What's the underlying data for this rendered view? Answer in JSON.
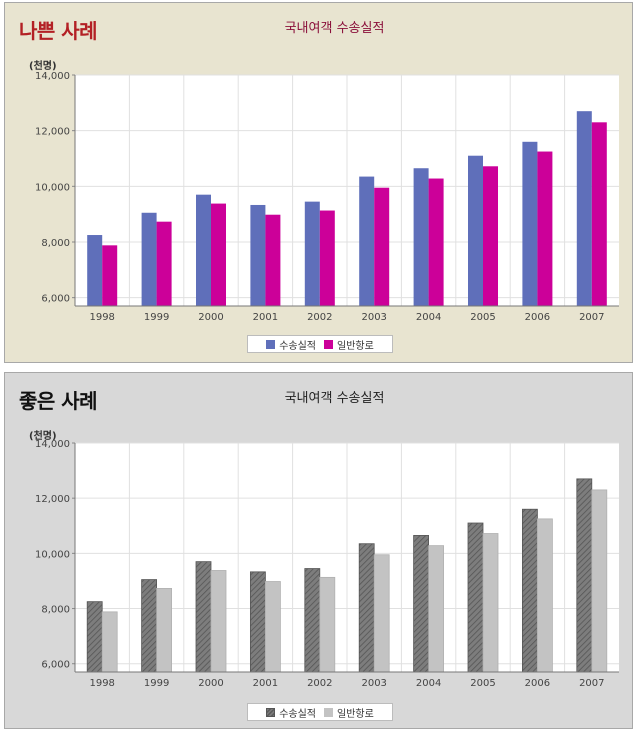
{
  "panels": [
    {
      "heading": "나쁜 사례",
      "colors": {
        "series1": "#5f6fba",
        "series2": "#cc0099",
        "background": "#e8e4d0"
      }
    },
    {
      "heading": "좋은 사례",
      "colors": {
        "series1": "hatched-gray #7a7a7a",
        "series2": "#c3c3c3",
        "background": "#d8d8d8"
      }
    }
  ],
  "chart_data": [
    {
      "type": "bar",
      "title": "국내여객 수송실적",
      "ylabel": "(천명)",
      "xlabel": "",
      "categories": [
        "1998",
        "1999",
        "2000",
        "2001",
        "2002",
        "2003",
        "2004",
        "2005",
        "2006",
        "2007"
      ],
      "series": [
        {
          "name": "수송실적",
          "values": [
            8250,
            9050,
            9700,
            9330,
            9450,
            10350,
            10650,
            11100,
            11600,
            12700
          ]
        },
        {
          "name": "일반항로",
          "values": [
            7880,
            8730,
            9380,
            8980,
            9130,
            9950,
            10280,
            10720,
            11250,
            12300
          ]
        }
      ],
      "yticks": [
        "6,000",
        "8,000",
        "10,000",
        "12,000",
        "14,000"
      ],
      "ylim": [
        5700,
        14000
      ],
      "grid": true,
      "legend": "bottom-center"
    },
    {
      "type": "bar",
      "title": "국내여객 수송실적",
      "ylabel": "(천명)",
      "xlabel": "",
      "categories": [
        "1998",
        "1999",
        "2000",
        "2001",
        "2002",
        "2003",
        "2004",
        "2005",
        "2006",
        "2007"
      ],
      "series": [
        {
          "name": "수송실적",
          "values": [
            8250,
            9050,
            9700,
            9330,
            9450,
            10350,
            10650,
            11100,
            11600,
            12700
          ]
        },
        {
          "name": "일반항로",
          "values": [
            7880,
            8730,
            9380,
            8980,
            9130,
            9950,
            10280,
            10720,
            11250,
            12300
          ]
        }
      ],
      "yticks": [
        "6,000",
        "8,000",
        "10,000",
        "12,000",
        "14,000"
      ],
      "ylim": [
        5700,
        14000
      ],
      "grid": true,
      "legend": "bottom-center"
    }
  ]
}
